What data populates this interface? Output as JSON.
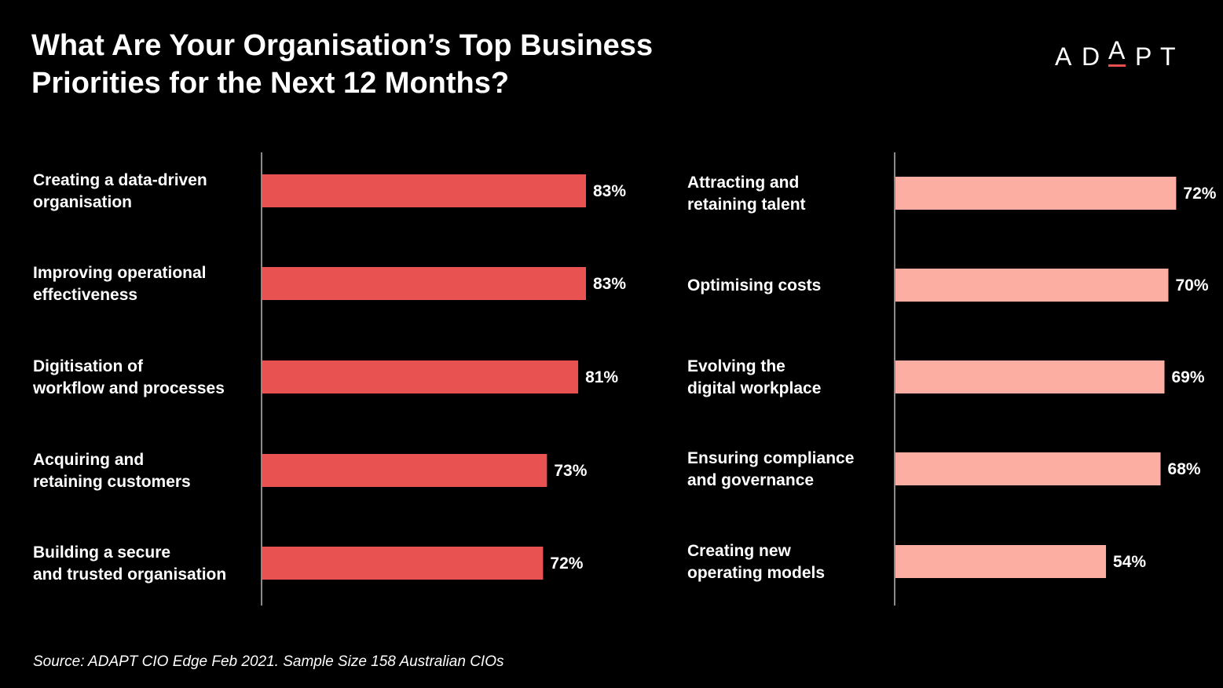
{
  "title": {
    "line1": "What Are Your Organisation’s Top Business",
    "line2": "Priorities for the Next 12 Months?"
  },
  "logo": {
    "letters": [
      "A",
      "D",
      "A",
      "P",
      "T"
    ],
    "accent_color": "#e8504f"
  },
  "source": "Source: ADAPT CIO Edge Feb 2021. Sample Size 158 Australian CIOs",
  "chart_data": [
    {
      "type": "bar",
      "orientation": "horizontal",
      "color": "#e85250",
      "categories": [
        [
          "Creating a data-driven",
          "organisation"
        ],
        [
          "Improving operational",
          "effectiveness"
        ],
        [
          "Digitisation of",
          "workflow and processes"
        ],
        [
          "Acquiring and",
          "retaining customers"
        ],
        [
          "Building a secure",
          "and trusted organisation"
        ]
      ],
      "values": [
        83,
        83,
        81,
        73,
        72
      ],
      "value_labels": [
        "83%",
        "83%",
        "81%",
        "73%",
        "72%"
      ],
      "unit": "%",
      "xlim": [
        0,
        100
      ]
    },
    {
      "type": "bar",
      "orientation": "horizontal",
      "color": "#fcaea3",
      "categories": [
        [
          "Attracting and",
          "retaining talent"
        ],
        [
          "Optimising costs"
        ],
        [
          "Evolving the",
          "digital workplace"
        ],
        [
          "Ensuring compliance",
          "and governance"
        ],
        [
          "Creating new",
          "operating models"
        ]
      ],
      "values": [
        72,
        70,
        69,
        68,
        54
      ],
      "value_labels": [
        "72%",
        "70%",
        "69%",
        "68%",
        "54%"
      ],
      "unit": "%",
      "xlim": [
        0,
        100
      ]
    }
  ]
}
